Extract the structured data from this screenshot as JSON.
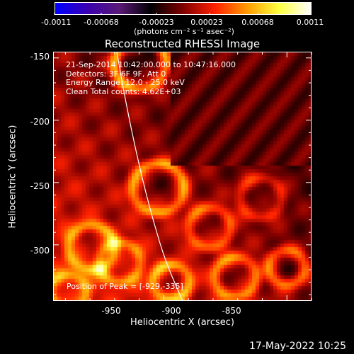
{
  "colorbar": {
    "ticks": [
      "-0.0011",
      "-0.00068",
      "-0.00023",
      "0.00023",
      "0.00068",
      "0.0011"
    ],
    "unit_label": "(photons cm⁻² s⁻¹ asec⁻²)",
    "colors": [
      "#0000ff",
      "#3a00b0",
      "#5a1a78",
      "#000000",
      "#800000",
      "#ff2000",
      "#ff9a00",
      "#ffff40",
      "#ffffff"
    ]
  },
  "plot": {
    "title": "Reconstructed RHESSI Image",
    "info_lines": [
      "21-Sep-2014 10:42:00.000 to 10:47:16.000",
      "Detectors: 3F 6F 9F, Att 0",
      "Energy Range: 12.0 - 25.0 keV",
      "Clean    Total counts: 4.62E+03"
    ],
    "peak_text": "Position of Peak = [-929,-335]",
    "xlabel": "Heliocentric X (arcsec)",
    "ylabel": "Heliocentric Y (arcsec)",
    "x_ticks": [
      "-950",
      "-900",
      "-850"
    ],
    "y_ticks": [
      "-150",
      "-200",
      "-250",
      "-300"
    ],
    "xlim": [
      -995,
      -890
    ],
    "ylim": [
      -345,
      -145
    ]
  },
  "footer": {
    "timestamp": "17-May-2022 10:25"
  }
}
